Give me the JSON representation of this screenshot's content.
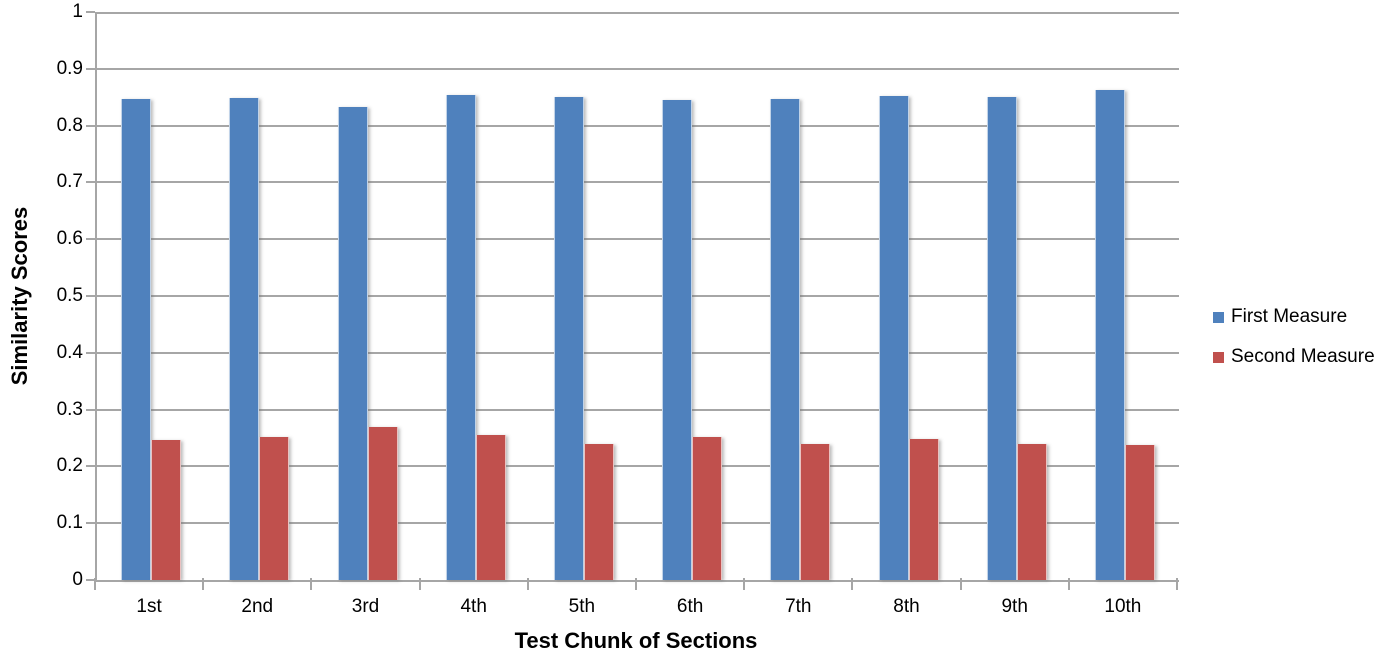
{
  "chart_data": {
    "type": "bar",
    "title": "",
    "xlabel": "Test Chunk of Sections",
    "ylabel": "Similarity Scores",
    "categories": [
      "1st",
      "2nd",
      "3rd",
      "4th",
      "5th",
      "6th",
      "7th",
      "8th",
      "9th",
      "10th"
    ],
    "series": [
      {
        "name": "First Measure",
        "color": "#4F81BD",
        "values": [
          0.846,
          0.849,
          0.832,
          0.854,
          0.85,
          0.845,
          0.847,
          0.852,
          0.851,
          0.862
        ]
      },
      {
        "name": "Second Measure",
        "color": "#C0504D",
        "values": [
          0.246,
          0.252,
          0.269,
          0.256,
          0.24,
          0.251,
          0.24,
          0.248,
          0.24,
          0.238
        ]
      }
    ],
    "ylim": [
      0,
      1
    ],
    "y_ticks": [
      "0",
      "0.1",
      "0.2",
      "0.3",
      "0.4",
      "0.5",
      "0.6",
      "0.7",
      "0.8",
      "0.9",
      "1"
    ],
    "grid": "horizontal-only",
    "gridline_color": "#A6A6A6",
    "axis_color": "#A6A6A6",
    "text_color": "#000000",
    "legend_position": "right"
  }
}
